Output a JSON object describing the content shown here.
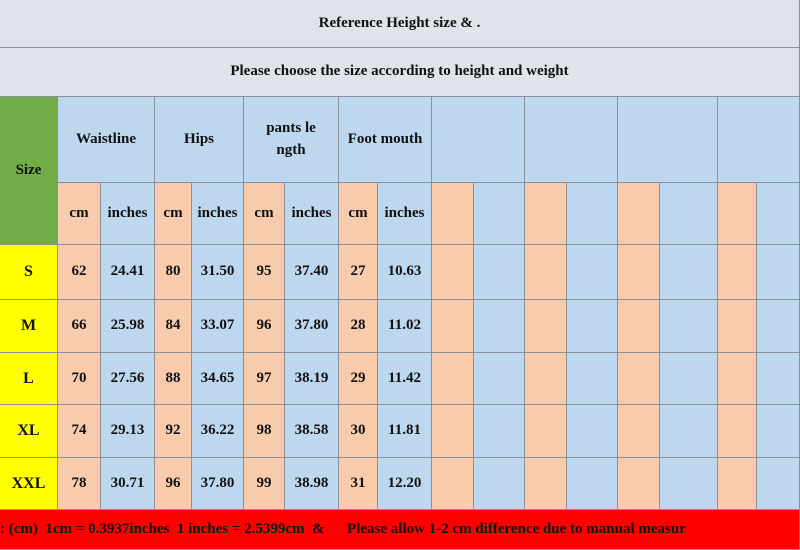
{
  "header": {
    "title": "Reference Height size  &  .",
    "subtitle": "Please choose the size according to height and weight"
  },
  "table": {
    "size_label": "Size",
    "groups": [
      "Waistline",
      "Hips",
      "pants length",
      "Foot mouth"
    ],
    "units": [
      "cm",
      "inches",
      "cm",
      "inches",
      "cm",
      "inches",
      "cm",
      "inches"
    ],
    "rows": [
      [
        "S",
        "62",
        "24.41",
        "80",
        "31.50",
        "95",
        "37.40",
        "27",
        "10.63"
      ],
      [
        "M",
        "66",
        "25.98",
        "84",
        "33.07",
        "96",
        "37.80",
        "28",
        "11.02"
      ],
      [
        "L",
        "70",
        "27.56",
        "88",
        "34.65",
        "97",
        "38.19",
        "29",
        "11.42"
      ],
      [
        "XL",
        "74",
        "29.13",
        "92",
        "36.22",
        "98",
        "38.58",
        "30",
        "11.81"
      ],
      [
        "XXL",
        "78",
        "30.71",
        "96",
        "37.80",
        "99",
        "38.98",
        "31",
        "12.20"
      ]
    ]
  },
  "footer": {
    "note": ": (cm)  1cm = 0.3937inches  1 inches = 2.5399cm  &      Please allow 1-2 cm difference due to manual measur"
  }
}
